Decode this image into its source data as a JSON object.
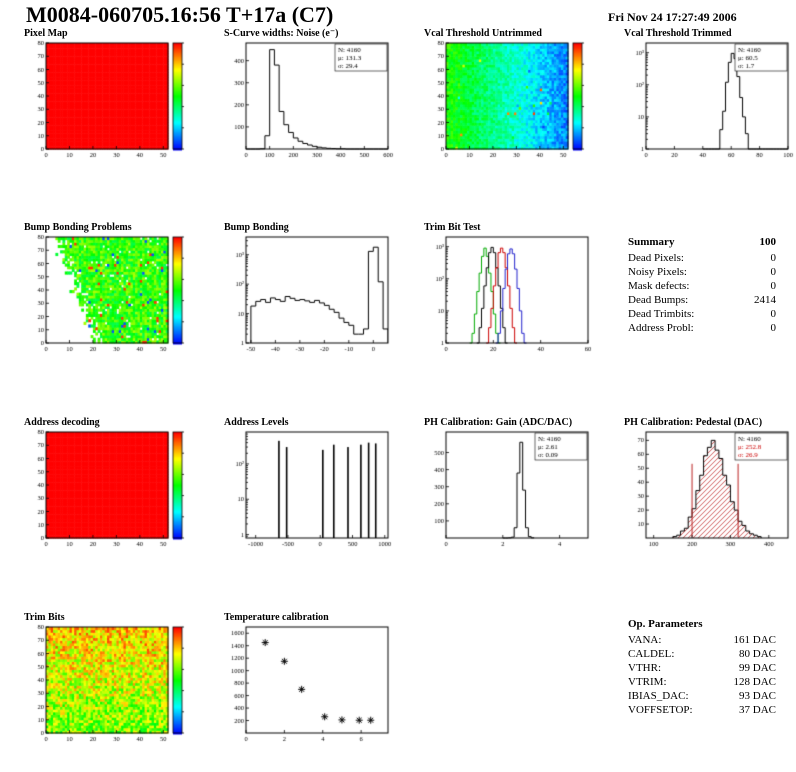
{
  "header": {
    "title": "M0084-060705.16:56 T+17a (C7)",
    "date": "Fri Nov 24 17:27:49 2006"
  },
  "summary": {
    "title": "Summary",
    "total": "100",
    "rows": [
      {
        "label": "Dead Pixels:",
        "value": "0"
      },
      {
        "label": "Noisy Pixels:",
        "value": "0"
      },
      {
        "label": "Mask defects:",
        "value": "0"
      },
      {
        "label": "Dead Bumps:",
        "value": "2414"
      },
      {
        "label": "Dead Trimbits:",
        "value": "0"
      },
      {
        "label": "Address Probl:",
        "value": "0"
      }
    ]
  },
  "op_parameters": {
    "title": "Op. Parameters",
    "rows": [
      {
        "label": "VANA:",
        "value": "161 DAC"
      },
      {
        "label": "CALDEL:",
        "value": "80 DAC"
      },
      {
        "label": "VTHR:",
        "value": "99 DAC"
      },
      {
        "label": "VTRIM:",
        "value": "128 DAC"
      },
      {
        "label": "IBIAS_DAC:",
        "value": "93 DAC"
      },
      {
        "label": "VOFFSETOP:",
        "value": "37 DAC"
      }
    ]
  },
  "chart_data": [
    {
      "panel": "pixel-map",
      "title": "Pixel Map",
      "type": "heatmap",
      "style": "uniform-red",
      "seed": 11,
      "xlim": [
        0,
        52
      ],
      "ylim": [
        0,
        80
      ],
      "xticks": [
        0,
        10,
        20,
        30,
        40,
        50
      ],
      "yticks": [
        0,
        10,
        20,
        30,
        40,
        50,
        60,
        70,
        80
      ],
      "colorbar": true
    },
    {
      "panel": "scurve-noise",
      "title": "S-Curve widths: Noise (e⁻)",
      "type": "hist",
      "x0": 0,
      "binw": 20,
      "values": [
        0,
        0,
        0,
        1,
        60,
        450,
        380,
        170,
        110,
        75,
        50,
        35,
        25,
        18,
        12,
        8,
        5,
        3,
        2,
        1,
        1,
        0,
        0,
        0,
        0,
        0,
        0,
        0,
        0,
        0
      ],
      "xlim": [
        0,
        600
      ],
      "ylim": [
        0,
        480
      ],
      "xticks": [
        0,
        100,
        200,
        300,
        400,
        500,
        600
      ],
      "yticks": [
        100,
        200,
        300,
        400
      ],
      "logy": false,
      "stats": {
        "n": "4160",
        "mean": "131.3",
        "sigma": "29.4"
      }
    },
    {
      "panel": "vcal-untrimmed",
      "title": "Vcal Threshold Untrimmed",
      "type": "heatmap",
      "style": "gradient-green-blue",
      "seed": 23,
      "xlim": [
        0,
        52
      ],
      "ylim": [
        0,
        80
      ],
      "xticks": [
        0,
        10,
        20,
        30,
        40,
        50
      ],
      "yticks": [
        0,
        10,
        20,
        30,
        40,
        50,
        60,
        70,
        80
      ],
      "colorbar": true,
      "gradient": {
        "left_value_dac": 105,
        "right_value_dac": 65
      }
    },
    {
      "panel": "vcal-trimmed",
      "title": "Vcal Threshold Trimmed",
      "type": "hist",
      "x0": 40,
      "binw": 2,
      "values": [
        0,
        0,
        0,
        0,
        0,
        1,
        4,
        15,
        120,
        500,
        950,
        650,
        180,
        40,
        10,
        3,
        1,
        0,
        0,
        0,
        0,
        0,
        0,
        0,
        0,
        0,
        0,
        0,
        0,
        0
      ],
      "xlim": [
        0,
        100
      ],
      "ylim": [
        1,
        2000
      ],
      "logy": true,
      "xticks": [
        0,
        20,
        40,
        60,
        80,
        100
      ],
      "yticks": [
        1,
        10,
        100,
        1000
      ],
      "stats": {
        "n": "4160",
        "mean": "60.5",
        "sigma": "1.7"
      }
    },
    {
      "panel": "bump-bonding-problems",
      "title": "Bump Bonding Problems",
      "type": "heatmap",
      "style": "dead-left",
      "seed": 37,
      "xlim": [
        0,
        52
      ],
      "ylim": [
        0,
        80
      ],
      "xticks": [
        0,
        10,
        20,
        30,
        40,
        50
      ],
      "yticks": [
        0,
        10,
        20,
        30,
        40,
        50,
        60,
        70,
        80
      ],
      "colorbar": true,
      "dead_bumps": 2414
    },
    {
      "panel": "bump-bonding",
      "title": "Bump Bonding",
      "type": "hist",
      "x0": -50,
      "binw": 2,
      "values": [
        18,
        26,
        30,
        24,
        34,
        30,
        26,
        38,
        33,
        28,
        30,
        27,
        24,
        28,
        23,
        19,
        14,
        11,
        7,
        5,
        4,
        2,
        2,
        3,
        1300,
        1800,
        120,
        3
      ],
      "xlim": [
        -52,
        6
      ],
      "ylim": [
        1,
        4000
      ],
      "logy": true,
      "xticks": [
        -50,
        -40,
        -30,
        -20,
        -10,
        0
      ],
      "yticks": [
        1,
        10,
        100,
        1000
      ]
    },
    {
      "panel": "trim-bit-test",
      "title": "Trim Bit Test",
      "type": "multi-hist",
      "series": [
        {
          "name": "trim-test-1",
          "color": "#00aa00",
          "x0": 10,
          "binw": 1,
          "values": [
            1,
            2,
            8,
            40,
            150,
            500,
            900,
            500,
            150,
            40,
            8,
            2,
            1
          ]
        },
        {
          "name": "trim-test-2",
          "color": "#000000",
          "x0": 13,
          "binw": 1,
          "values": [
            1,
            3,
            12,
            60,
            220,
            650,
            950,
            650,
            220,
            60,
            12,
            3,
            1
          ]
        },
        {
          "name": "trim-test-3",
          "color": "#cc0000",
          "x0": 17,
          "binw": 1,
          "values": [
            1,
            3,
            12,
            60,
            220,
            650,
            900,
            650,
            220,
            60,
            12,
            3,
            1
          ]
        },
        {
          "name": "trim-test-4",
          "color": "#2222cc",
          "x0": 21,
          "binw": 1,
          "values": [
            1,
            2,
            10,
            50,
            200,
            600,
            850,
            600,
            200,
            50,
            10,
            2,
            1
          ]
        }
      ],
      "xlim": [
        0,
        60
      ],
      "ylim": [
        1,
        2000
      ],
      "logy": true,
      "xticks": [
        0,
        20,
        40,
        60
      ],
      "yticks": [
        1,
        10,
        100,
        1000
      ]
    },
    {
      "panel": "address-decoding",
      "title": "Address decoding",
      "type": "heatmap",
      "style": "uniform-red",
      "seed": 41,
      "xlim": [
        0,
        52
      ],
      "ylim": [
        0,
        80
      ],
      "xticks": [
        0,
        10,
        20,
        30,
        40,
        50
      ],
      "yticks": [
        0,
        10,
        20,
        30,
        40,
        50,
        60,
        70,
        80
      ],
      "colorbar": true
    },
    {
      "panel": "address-levels",
      "title": "Address Levels",
      "type": "spikes",
      "spikes": [
        [
          -640,
          450
        ],
        [
          -520,
          300
        ],
        [
          40,
          250
        ],
        [
          210,
          350
        ],
        [
          430,
          300
        ],
        [
          630,
          350
        ],
        [
          750,
          400
        ],
        [
          860,
          380
        ]
      ],
      "xlim": [
        -1150,
        1050
      ],
      "ylim": [
        0.8,
        800
      ],
      "logy": true,
      "xticks": [
        -1000,
        -500,
        0,
        500,
        1000
      ],
      "yticks": [
        1,
        10,
        100
      ]
    },
    {
      "panel": "ph-gain",
      "title": "PH Calibration: Gain (ADC/DAC)",
      "type": "hist",
      "x0": 2.0,
      "binw": 0.1,
      "values": [
        0,
        0,
        1,
        5,
        60,
        380,
        560,
        280,
        60,
        8,
        1
      ],
      "xlim": [
        0,
        5
      ],
      "ylim": [
        0,
        620
      ],
      "xticks": [
        0,
        2,
        4
      ],
      "yticks": [
        100,
        200,
        300,
        400,
        500
      ],
      "logy": false,
      "stats": {
        "n": "4160",
        "mean": "2.61",
        "sigma": "0.09"
      }
    },
    {
      "panel": "ph-pedestal",
      "title": "PH Calibration: Pedestal (DAC)",
      "type": "hist",
      "x0": 150,
      "binw": 10,
      "values": [
        1,
        2,
        5,
        7,
        15,
        21,
        34,
        45,
        59,
        65,
        70,
        63,
        57,
        45,
        38,
        26,
        20,
        12,
        9,
        5,
        3,
        2,
        1
      ],
      "fill": "hatch-red",
      "vlines": [
        200,
        320
      ],
      "vline_color": "#bb2222",
      "xlim": [
        80,
        450
      ],
      "ylim": [
        0,
        76
      ],
      "xticks": [
        100,
        200,
        300,
        400
      ],
      "yticks": [
        10,
        20,
        30,
        40,
        50,
        60,
        70
      ],
      "logy": false,
      "stats": {
        "n": "4160",
        "mean": "252.8",
        "sigma": "26.9",
        "highlight": true
      }
    },
    {
      "panel": "trim-bits",
      "title": "Trim Bits",
      "type": "heatmap",
      "style": "mottled-warm",
      "seed": 53,
      "xlim": [
        0,
        52
      ],
      "ylim": [
        0,
        80
      ],
      "xticks": [
        0,
        10,
        20,
        30,
        40,
        50
      ],
      "yticks": [
        0,
        10,
        20,
        30,
        40,
        50,
        60,
        70,
        80
      ],
      "colorbar": true
    },
    {
      "panel": "temperature",
      "title": "Temperature calibration",
      "type": "scatter",
      "marker": "asterisk",
      "points": [
        [
          1,
          1450
        ],
        [
          2,
          1150
        ],
        [
          2.9,
          700
        ],
        [
          4.1,
          260
        ],
        [
          5.0,
          210
        ],
        [
          5.9,
          205
        ],
        [
          6.5,
          205
        ]
      ],
      "xlim": [
        0,
        7.4
      ],
      "ylim": [
        0,
        1700
      ],
      "xticks": [
        0,
        2,
        4,
        6
      ],
      "yticks": [
        200,
        400,
        600,
        800,
        1000,
        1200,
        1400,
        1600
      ],
      "logy": false
    }
  ]
}
